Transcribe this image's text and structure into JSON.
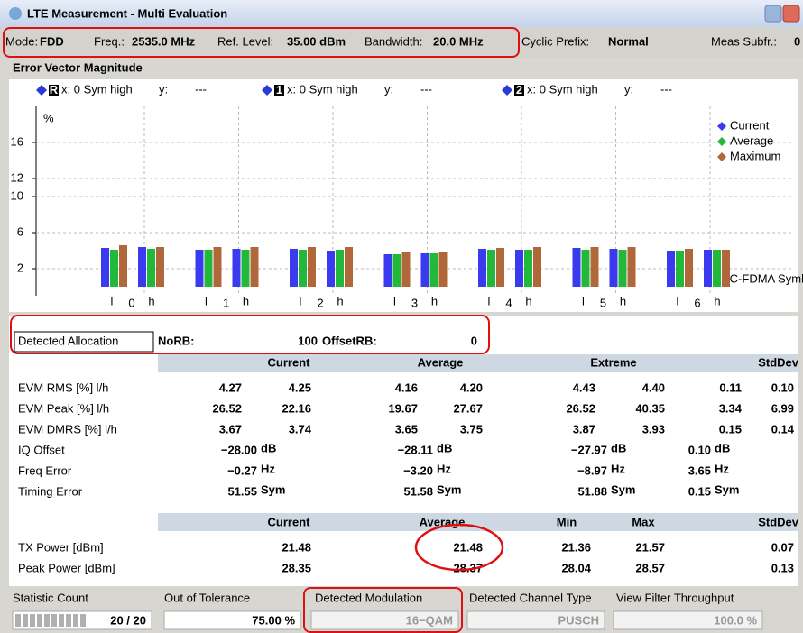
{
  "window": {
    "title": "LTE Measurement - Multi Evaluation"
  },
  "info_bar": [
    {
      "label": "Mode:",
      "value": "FDD"
    },
    {
      "label": "Freq.:",
      "value": "2535.0 MHz"
    },
    {
      "label": "Ref. Level:",
      "value": "35.00 dBm"
    },
    {
      "label": "Bandwidth:",
      "value": "20.0 MHz"
    },
    {
      "label": "Cyclic Prefix:",
      "value": "Normal"
    },
    {
      "label": "Meas Subfr.:",
      "value": "0"
    }
  ],
  "chart_data": {
    "type": "bar",
    "title": "Error Vector Magnitude",
    "markers": [
      {
        "id": "R",
        "x": "x: 0 Sym high",
        "y_label": "y:",
        "y": "---"
      },
      {
        "id": "1",
        "x": "x: 0 Sym high",
        "y_label": "y:",
        "y": "---"
      },
      {
        "id": "2",
        "x": "x: 0 Sym high",
        "y_label": "y:",
        "y": "---"
      }
    ],
    "y_label": "%",
    "x_label": "SC-FDMA Symbol",
    "groups": [
      "0",
      "1",
      "2",
      "3",
      "4",
      "5",
      "6"
    ],
    "categories": [
      "l",
      "h",
      "l",
      "h",
      "l",
      "h",
      "l",
      "h",
      "l",
      "h",
      "l",
      "h",
      "l",
      "h"
    ],
    "series": [
      {
        "name": "Current",
        "color": "#3a3aee",
        "values": [
          4.3,
          4.4,
          4.1,
          4.2,
          4.2,
          4.0,
          3.6,
          3.7,
          4.2,
          4.1,
          4.3,
          4.2,
          4.0,
          4.1
        ]
      },
      {
        "name": "Average",
        "color": "#22b83a",
        "values": [
          4.1,
          4.2,
          4.1,
          4.1,
          4.1,
          4.1,
          3.6,
          3.7,
          4.1,
          4.1,
          4.1,
          4.1,
          4.0,
          4.1
        ]
      },
      {
        "name": "Maximum",
        "color": "#b0683a",
        "values": [
          4.6,
          4.4,
          4.4,
          4.4,
          4.4,
          4.4,
          3.8,
          3.8,
          4.3,
          4.4,
          4.4,
          4.4,
          4.2,
          4.1
        ]
      }
    ],
    "ylim": [
      0,
      20
    ],
    "yticks": [
      2,
      6,
      10,
      12,
      16
    ],
    "grid": true,
    "legend": "upper right"
  },
  "allocation": {
    "title": "Detected Allocation",
    "norb_label": "NoRB:",
    "norb": "100",
    "offset_label": "OffsetRB:",
    "offset": "0"
  },
  "table1": {
    "headers": [
      "Current",
      "Average",
      "Extreme",
      "StdDev"
    ],
    "rows": [
      {
        "label": "EVM RMS [%] l/h",
        "cells": [
          "4.27",
          "4.25",
          "4.16",
          "4.20",
          "4.43",
          "4.40",
          "0.11",
          "0.10"
        ]
      },
      {
        "label": "EVM Peak [%] l/h",
        "cells": [
          "26.52",
          "22.16",
          "19.67",
          "27.67",
          "26.52",
          "40.35",
          "3.34",
          "6.99"
        ]
      },
      {
        "label": "EVM DMRS [%] l/h",
        "cells": [
          "3.67",
          "3.74",
          "3.65",
          "3.75",
          "3.87",
          "3.93",
          "0.15",
          "0.14"
        ]
      },
      {
        "label": "IQ Offset",
        "unit": "dB",
        "cells": [
          "−28.00",
          "−28.11",
          "−27.97",
          "0.10"
        ]
      },
      {
        "label": "Freq Error",
        "unit": "Hz",
        "cells": [
          "−0.27",
          "−3.20",
          "−8.97",
          "3.65"
        ]
      },
      {
        "label": "Timing Error",
        "unit": "Sym",
        "cells": [
          "51.55",
          "51.58",
          "51.88",
          "0.15"
        ]
      }
    ]
  },
  "table2": {
    "headers": [
      "Current",
      "Average",
      "Min",
      "Max",
      "StdDev"
    ],
    "rows": [
      {
        "label": "TX Power [dBm]",
        "cells": [
          "21.48",
          "21.48",
          "21.36",
          "21.57",
          "0.07"
        ]
      },
      {
        "label": "Peak Power [dBm]",
        "cells": [
          "28.35",
          "28.37",
          "28.04",
          "28.57",
          "0.13"
        ]
      }
    ]
  },
  "status": [
    {
      "label": "Statistic Count",
      "value": "20 / 20"
    },
    {
      "label": "Out of Tolerance",
      "value": "75.00 %"
    },
    {
      "label": "Detected Modulation",
      "value": "16−QAM"
    },
    {
      "label": "Detected Channel Type",
      "value": "PUSCH"
    },
    {
      "label": "View Filter Throughput",
      "value": "100.0 %"
    }
  ]
}
